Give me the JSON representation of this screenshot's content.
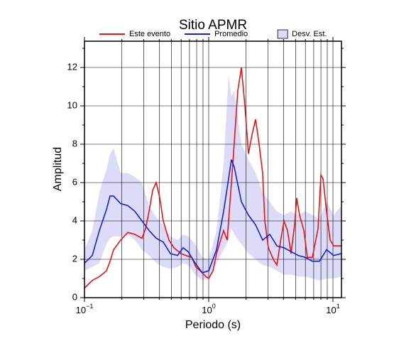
{
  "chart_data": {
    "type": "line",
    "title": "Sitio APMR",
    "x_label": "Periodo (s)",
    "y_label": "Amplitud",
    "log_x": true,
    "grid": true,
    "xlim": [
      0.1,
      11.71
    ],
    "ylim": [
      0,
      13.37
    ],
    "xticks": [
      {
        "value": 0.1,
        "base": "10",
        "exponent": "−1"
      },
      {
        "value": 1,
        "base": "10",
        "exponent": "0"
      },
      {
        "value": 10,
        "base": "10",
        "exponent": "1"
      }
    ],
    "xminor": [
      0.2,
      0.3,
      0.4,
      0.5,
      0.6,
      0.7,
      0.8,
      0.9,
      2,
      3,
      4,
      5,
      6,
      7,
      8,
      9
    ],
    "yticks": [
      0,
      2,
      4,
      6,
      8,
      10,
      12
    ],
    "yminor": [
      1,
      3,
      5,
      7,
      9,
      11,
      13
    ],
    "series": [
      {
        "name": "Este evento",
        "color": "#ee1111",
        "x": [
          0.1,
          0.1156,
          0.1318,
          0.1504,
          0.1606,
          0.1715,
          0.1955,
          0.2232,
          0.2545,
          0.2904,
          0.3101,
          0.3311,
          0.3538,
          0.3777,
          0.4036,
          0.4305,
          0.4786,
          0.5248,
          0.5984,
          0.6561,
          0.7295,
          0.7889,
          0.854,
          0.9487,
          1,
          1.082,
          1.156,
          1.234,
          1.318,
          1.408,
          1.564,
          1.715,
          1.832,
          1.956,
          2.089,
          2.232,
          2.382,
          2.545,
          2.716,
          2.828,
          3.02,
          3.311,
          3.537,
          3.776,
          4.035,
          4.306,
          4.601,
          4.913,
          5.111,
          5.388,
          5.833,
          6.225,
          6.826,
          7.586,
          7.998,
          8.318,
          8.884,
          9.49,
          10.13,
          11.71
        ],
        "values": [
          0.5,
          0.9,
          1.1,
          1.4,
          1.9,
          2.5,
          3.0,
          3.4,
          3.3,
          3.1,
          3.6,
          4.5,
          5.6,
          6.0,
          5.2,
          4.0,
          3.0,
          2.6,
          2.3,
          2.2,
          2.1,
          1.6,
          1.4,
          1.1,
          1.0,
          1.4,
          2.3,
          2.9,
          3.5,
          3.0,
          7.0,
          10.8,
          12.0,
          10.0,
          7.5,
          8.5,
          9.3,
          8.0,
          6.5,
          4.0,
          2.6,
          2.0,
          1.7,
          2.9,
          4.0,
          3.5,
          2.3,
          3.8,
          5.2,
          4.3,
          3.5,
          2.1,
          2.1,
          3.6,
          6.4,
          6.2,
          4.5,
          3.0,
          2.7,
          2.7
        ]
      },
      {
        "name": "Promedio",
        "color": "#1122dd",
        "x": [
          0.1,
          0.1156,
          0.1318,
          0.1504,
          0.1606,
          0.1715,
          0.1955,
          0.2232,
          0.2545,
          0.2904,
          0.3311,
          0.3777,
          0.4305,
          0.4912,
          0.5606,
          0.6223,
          0.6823,
          0.7782,
          0.888,
          1,
          1.156,
          1.318,
          1.445,
          1.524,
          1.606,
          1.832,
          2.089,
          2.382,
          2.716,
          3.1,
          3.537,
          4.035,
          4.601,
          5.248,
          5.984,
          6.826,
          7.788,
          8.884,
          10.13,
          11.71
        ],
        "values": [
          1.8,
          2.2,
          3.5,
          4.6,
          5.3,
          5.3,
          4.9,
          4.8,
          4.5,
          4.0,
          3.5,
          3.1,
          2.9,
          2.3,
          2.2,
          2.6,
          2.4,
          1.8,
          1.3,
          1.4,
          2.5,
          4.5,
          6.2,
          7.2,
          6.8,
          5.0,
          4.3,
          3.8,
          3.0,
          3.3,
          2.7,
          2.6,
          2.4,
          2.2,
          2.1,
          1.9,
          1.9,
          2.5,
          2.2,
          2.3
        ]
      },
      {
        "name": "Desv. Est.",
        "color": "#dcdcf8",
        "band": true,
        "x": [
          0.1,
          0.1156,
          0.1318,
          0.1504,
          0.1606,
          0.1715,
          0.1955,
          0.2232,
          0.2545,
          0.2904,
          0.3311,
          0.3777,
          0.4305,
          0.4912,
          0.5606,
          0.6223,
          0.6823,
          0.7782,
          0.888,
          1,
          1.156,
          1.318,
          1.445,
          1.524,
          1.606,
          1.832,
          2.089,
          2.382,
          2.716,
          3.1,
          3.537,
          4.035,
          4.601,
          5.248,
          5.984,
          6.826,
          7.788,
          8.884,
          10.13,
          11.71
        ],
        "upper": [
          2.5,
          3.5,
          5.5,
          6.7,
          7.5,
          7.8,
          6.5,
          6.5,
          6.3,
          6.0,
          4.8,
          4.2,
          3.8,
          3.2,
          3.0,
          3.3,
          3.2,
          2.8,
          2.1,
          2.0,
          3.5,
          7.0,
          11.6,
          10.5,
          10.8,
          8.0,
          7.2,
          6.5,
          5.5,
          5.0,
          4.5,
          4.3,
          4.5,
          4.3,
          4.5,
          4.3,
          4.1,
          5.0,
          4.3,
          4.8
        ],
        "lower": [
          1.4,
          1.6,
          1.8,
          2.8,
          3.1,
          3.2,
          3.2,
          3.3,
          3.0,
          2.5,
          2.2,
          1.8,
          1.6,
          1.5,
          1.6,
          1.8,
          1.7,
          1.2,
          0.9,
          1.0,
          1.8,
          2.5,
          3.0,
          3.6,
          3.3,
          2.8,
          2.3,
          2.0,
          1.7,
          1.6,
          1.4,
          1.2,
          1.2,
          1.1,
          1.1,
          1.0,
          0.9,
          1.0,
          1.0,
          1.1
        ]
      }
    ]
  }
}
